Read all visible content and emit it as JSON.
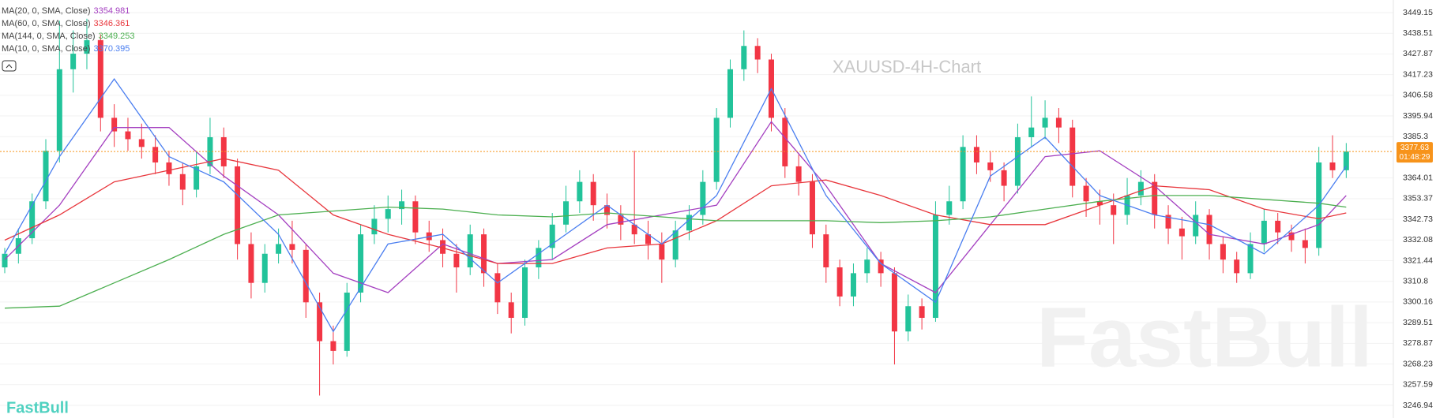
{
  "chart_data": {
    "type": "candlestick",
    "title": "XAUUSD-4H-Chart",
    "brand": "FastBull",
    "up_color": "#22c39a",
    "down_color": "#f23645",
    "ylim": [
      3240.44,
      3455.65
    ],
    "yticks": [
      3449.15,
      3438.51,
      3427.87,
      3417.23,
      3406.58,
      3395.94,
      3385.3,
      3364.01,
      3353.37,
      3342.73,
      3332.08,
      3321.44,
      3310.8,
      3300.16,
      3289.51,
      3278.87,
      3268.23,
      3257.59,
      3246.94
    ],
    "grid": true,
    "last_price": {
      "value": 3377.63,
      "countdown": "01:48:29",
      "color": "#f7931a"
    },
    "candles": [
      [
        3318,
        3328,
        3315,
        3325
      ],
      [
        3325,
        3338,
        3320,
        3333
      ],
      [
        3333,
        3356,
        3330,
        3352
      ],
      [
        3352,
        3384,
        3348,
        3378
      ],
      [
        3378,
        3445,
        3372,
        3420
      ],
      [
        3420,
        3440,
        3408,
        3428
      ],
      [
        3428,
        3446,
        3420,
        3435
      ],
      [
        3435,
        3438,
        3388,
        3395
      ],
      [
        3395,
        3402,
        3380,
        3388
      ],
      [
        3388,
        3395,
        3378,
        3384
      ],
      [
        3384,
        3392,
        3374,
        3380
      ],
      [
        3380,
        3386,
        3366,
        3372
      ],
      [
        3372,
        3378,
        3360,
        3366
      ],
      [
        3366,
        3372,
        3350,
        3358
      ],
      [
        3358,
        3378,
        3354,
        3370
      ],
      [
        3370,
        3395,
        3366,
        3385
      ],
      [
        3385,
        3390,
        3364,
        3370
      ],
      [
        3370,
        3374,
        3322,
        3330
      ],
      [
        3330,
        3336,
        3302,
        3310
      ],
      [
        3310,
        3330,
        3305,
        3325
      ],
      [
        3325,
        3338,
        3320,
        3330
      ],
      [
        3330,
        3342,
        3320,
        3327
      ],
      [
        3327,
        3330,
        3292,
        3300
      ],
      [
        3300,
        3305,
        3252,
        3280
      ],
      [
        3280,
        3288,
        3268,
        3275
      ],
      [
        3275,
        3310,
        3272,
        3305
      ],
      [
        3305,
        3340,
        3300,
        3335
      ],
      [
        3335,
        3350,
        3330,
        3343
      ],
      [
        3343,
        3355,
        3336,
        3348
      ],
      [
        3348,
        3358,
        3340,
        3352
      ],
      [
        3352,
        3355,
        3330,
        3336
      ],
      [
        3336,
        3342,
        3326,
        3332
      ],
      [
        3332,
        3338,
        3318,
        3325
      ],
      [
        3325,
        3330,
        3305,
        3318
      ],
      [
        3318,
        3340,
        3314,
        3335
      ],
      [
        3335,
        3338,
        3308,
        3315
      ],
      [
        3315,
        3320,
        3294,
        3300
      ],
      [
        3300,
        3305,
        3284,
        3292
      ],
      [
        3292,
        3322,
        3288,
        3318
      ],
      [
        3318,
        3332,
        3312,
        3328
      ],
      [
        3328,
        3346,
        3322,
        3340
      ],
      [
        3340,
        3360,
        3336,
        3352
      ],
      [
        3352,
        3368,
        3346,
        3362
      ],
      [
        3362,
        3366,
        3342,
        3350
      ],
      [
        3350,
        3356,
        3338,
        3345
      ],
      [
        3345,
        3350,
        3332,
        3340
      ],
      [
        3340,
        3378,
        3330,
        3335
      ],
      [
        3335,
        3342,
        3322,
        3330
      ],
      [
        3330,
        3336,
        3310,
        3322
      ],
      [
        3322,
        3342,
        3318,
        3337
      ],
      [
        3337,
        3350,
        3332,
        3345
      ],
      [
        3345,
        3368,
        3340,
        3362
      ],
      [
        3362,
        3400,
        3358,
        3395
      ],
      [
        3395,
        3425,
        3390,
        3420
      ],
      [
        3420,
        3440,
        3414,
        3432
      ],
      [
        3432,
        3436,
        3418,
        3425
      ],
      [
        3425,
        3428,
        3388,
        3395
      ],
      [
        3395,
        3400,
        3364,
        3370
      ],
      [
        3370,
        3376,
        3355,
        3362
      ],
      [
        3362,
        3366,
        3328,
        3335
      ],
      [
        3335,
        3340,
        3310,
        3318
      ],
      [
        3318,
        3322,
        3298,
        3303
      ],
      [
        3303,
        3320,
        3298,
        3315
      ],
      [
        3315,
        3328,
        3310,
        3322
      ],
      [
        3322,
        3326,
        3308,
        3315
      ],
      [
        3315,
        3318,
        3268,
        3285
      ],
      [
        3285,
        3304,
        3280,
        3298
      ],
      [
        3298,
        3302,
        3286,
        3292
      ],
      [
        3292,
        3352,
        3290,
        3345
      ],
      [
        3345,
        3360,
        3340,
        3352
      ],
      [
        3352,
        3386,
        3348,
        3380
      ],
      [
        3380,
        3386,
        3366,
        3372
      ],
      [
        3372,
        3378,
        3362,
        3368
      ],
      [
        3368,
        3372,
        3352,
        3360
      ],
      [
        3360,
        3392,
        3356,
        3385
      ],
      [
        3385,
        3406,
        3380,
        3390
      ],
      [
        3390,
        3404,
        3384,
        3395
      ],
      [
        3395,
        3400,
        3382,
        3390
      ],
      [
        3390,
        3394,
        3354,
        3360
      ],
      [
        3360,
        3364,
        3344,
        3352
      ],
      [
        3352,
        3358,
        3340,
        3350
      ],
      [
        3350,
        3356,
        3330,
        3345
      ],
      [
        3345,
        3364,
        3340,
        3355
      ],
      [
        3355,
        3368,
        3350,
        3362
      ],
      [
        3362,
        3366,
        3338,
        3345
      ],
      [
        3345,
        3350,
        3330,
        3338
      ],
      [
        3338,
        3344,
        3322,
        3334
      ],
      [
        3334,
        3352,
        3330,
        3345
      ],
      [
        3345,
        3348,
        3322,
        3330
      ],
      [
        3330,
        3334,
        3315,
        3322
      ],
      [
        3322,
        3326,
        3310,
        3315
      ],
      [
        3315,
        3336,
        3312,
        3330
      ],
      [
        3330,
        3348,
        3326,
        3342
      ],
      [
        3342,
        3346,
        3330,
        3336
      ],
      [
        3336,
        3340,
        3326,
        3332
      ],
      [
        3332,
        3338,
        3320,
        3328
      ],
      [
        3328,
        3380,
        3324,
        3372
      ],
      [
        3372,
        3386,
        3364,
        3368
      ],
      [
        3368,
        3382,
        3364,
        3377.63
      ]
    ],
    "ma_x": [
      0,
      4,
      8,
      12,
      16,
      20,
      24,
      28,
      32,
      36,
      40,
      44,
      48,
      52,
      56,
      60,
      64,
      68,
      72,
      76,
      80,
      84,
      88,
      92,
      96,
      98
    ],
    "series": [
      {
        "name": "MA(20, 0, SMA, Close)",
        "legend_value": 3354.981,
        "color": "#a43fc0",
        "values": [
          3322,
          3350,
          3390,
          3390,
          3365,
          3345,
          3315,
          3305,
          3330,
          3320,
          3322,
          3340,
          3345,
          3350,
          3393,
          3360,
          3320,
          3305,
          3340,
          3375,
          3378,
          3360,
          3335,
          3330,
          3340,
          3355
        ]
      },
      {
        "name": "MA(60, 0, SMA, Close)",
        "legend_value": 3346.361,
        "color": "#e8363c",
        "values": [
          3332,
          3345,
          3362,
          3368,
          3374,
          3368,
          3345,
          3335,
          3328,
          3320,
          3320,
          3328,
          3330,
          3342,
          3360,
          3363,
          3355,
          3345,
          3340,
          3340,
          3350,
          3360,
          3358,
          3348,
          3343,
          3346
        ]
      },
      {
        "name": "MA(144, 0, SMA, Close)",
        "legend_value": 3349.253,
        "color": "#4caf50",
        "values": [
          3297,
          3298,
          3310,
          3322,
          3335,
          3345,
          3347,
          3349,
          3348,
          3345,
          3344,
          3346,
          3344,
          3342,
          3342,
          3342,
          3341,
          3342,
          3344,
          3348,
          3352,
          3355,
          3355,
          3353,
          3351,
          3349
        ]
      },
      {
        "name": "MA(10, 0, SMA, Close)",
        "legend_value": 3370.395,
        "color": "#4a7ef0",
        "values": [
          3325,
          3375,
          3415,
          3375,
          3362,
          3335,
          3285,
          3330,
          3335,
          3310,
          3330,
          3350,
          3330,
          3355,
          3410,
          3355,
          3320,
          3300,
          3365,
          3385,
          3355,
          3345,
          3340,
          3325,
          3350,
          3370
        ]
      }
    ]
  }
}
